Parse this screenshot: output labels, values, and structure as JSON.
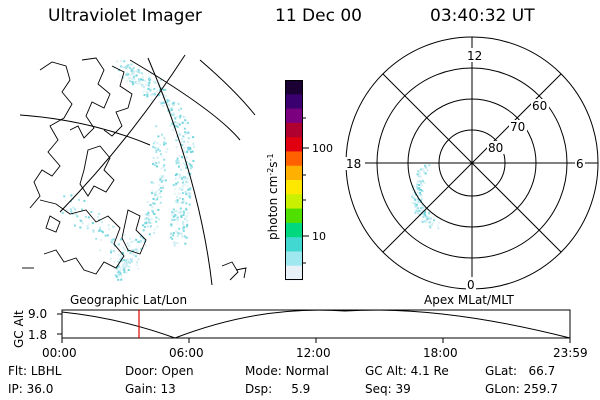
{
  "header": {
    "title": "Ultraviolet Imager",
    "date": "11 Dec 00",
    "time": "03:40:32 UT"
  },
  "left_map": {
    "label": "Geographic Lat/Lon"
  },
  "colorbar": {
    "unit_label": "photon cm",
    "unit_exp1": "-2",
    "unit_mid": "s",
    "unit_exp2": "-1",
    "ticks": [
      "100",
      "10"
    ],
    "colors": [
      "#1a0033",
      "#3a0070",
      "#7a0080",
      "#b00030",
      "#e00010",
      "#ff6000",
      "#ffb000",
      "#ffe800",
      "#c8f000",
      "#50e000",
      "#00d880",
      "#40d8d0",
      "#a0e8f0",
      "#e8f0f8"
    ]
  },
  "polar_map": {
    "label": "Apex MLat/MLT",
    "mlt_labels": [
      "12",
      "18",
      "6",
      "0"
    ],
    "lat_labels": [
      "60",
      "70",
      "80"
    ]
  },
  "altitude_plot": {
    "y_label": "GC Alt",
    "y_max": "9.0",
    "y_min": "1.8",
    "x_ticks": [
      "00:00",
      "06:00",
      "12:00",
      "18:00",
      "23:59"
    ],
    "cursor_time": "03:40",
    "cursor_color": "#e00000"
  },
  "info": {
    "row1": {
      "flt_label": "Flt:",
      "flt_value": "LBHL",
      "door_label": "Door:",
      "door_value": "Open",
      "mode_label": "Mode:",
      "mode_value": "Normal",
      "gcalt_label": "GC Alt:",
      "gcalt_value": "4.1 Re",
      "glat_label": "GLat:",
      "glat_value": "66.7"
    },
    "row2": {
      "ip_label": "IP:",
      "ip_value": "36.0",
      "gain_label": "Gain:",
      "gain_value": "13",
      "dsp_label": "Dsp:",
      "dsp_value": "5.9",
      "seq_label": "Seq:",
      "seq_value": "39",
      "glon_label": "GLon:",
      "glon_value": "259.7"
    }
  }
}
